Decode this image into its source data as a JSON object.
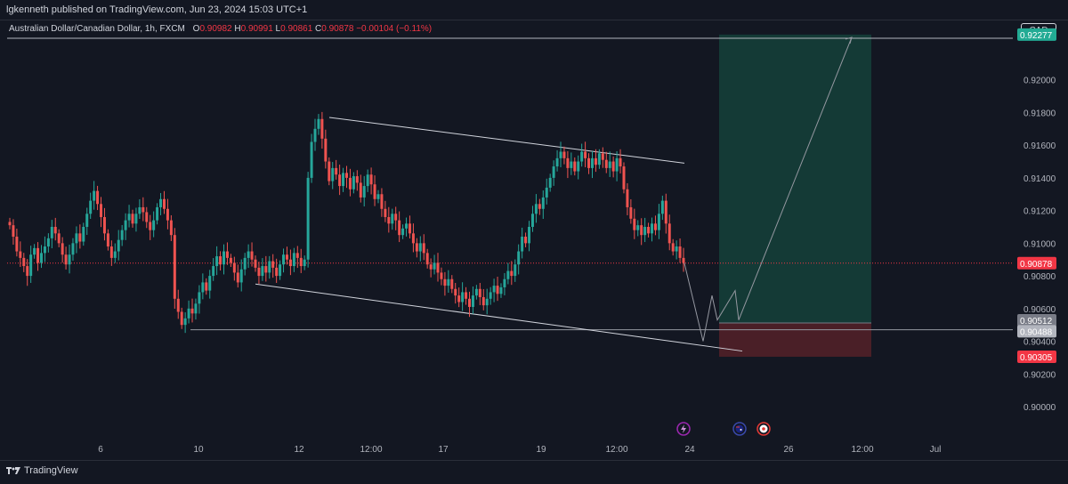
{
  "header": {
    "publish_text": "lgkenneth published on TradingView.com, Jun 23, 2024 15:03 UTC+1"
  },
  "legend": {
    "symbol": "Australian Dollar/Canadian Dollar, 1h, FXCM",
    "o_label": "O",
    "o_value": "0.90982",
    "h_label": "H",
    "h_value": "0.90991",
    "l_label": "L",
    "l_value": "0.90861",
    "c_label": "C",
    "c_value": "0.90878",
    "change": "−0.00104 (−0.11%)"
  },
  "currency_button": "CAD",
  "brand": {
    "name": "TradingView"
  },
  "colors": {
    "background": "#131722",
    "up": "#26a69a",
    "down": "#ef5350",
    "profit_zone": "#143a36",
    "loss_zone": "#4a1f27",
    "text": "#b2b5be"
  },
  "chart_data": {
    "type": "candlestick",
    "title": "Australian Dollar/Canadian Dollar, 1h, FXCM",
    "ylim": [
      0.8985,
      0.9232
    ],
    "y_ticks": [
      "0.92000",
      "0.91800",
      "0.91600",
      "0.91400",
      "0.91200",
      "0.91000",
      "0.90800",
      "0.90600",
      "0.90400",
      "0.90200",
      "0.90000"
    ],
    "x_ticks": [
      "6",
      "10",
      "12",
      "12:00",
      "17",
      "19",
      "12:00",
      "24",
      "26",
      "12:00",
      "Jul"
    ],
    "price_labels": [
      {
        "text": "0.92277",
        "value": 0.92277,
        "color": "#22ab94"
      },
      {
        "text": "0.90878",
        "value": 0.90878,
        "color": "#f23645"
      },
      {
        "text": "0.90512",
        "value": 0.90512,
        "color": "#787b86"
      },
      {
        "text": "0.90488",
        "value": 0.90488,
        "color": "#b2b5be"
      },
      {
        "text": "0.90305",
        "value": 0.90305,
        "color": "#f23645"
      }
    ],
    "current_price": 0.90878,
    "position": {
      "type": "long",
      "entry": 0.90512,
      "target": 0.92277,
      "stop": 0.90305
    },
    "channel": {
      "upper": {
        "from": 0.9177,
        "to": 0.9149
      },
      "lower": {
        "from": 0.9075,
        "to": 0.9034
      }
    },
    "support_level": 0.9047,
    "projection": [
      0.909,
      0.904,
      0.9068,
      0.9053,
      0.9071,
      0.9053,
      0.9226
    ],
    "events": [
      "lightning-event",
      "australia-flag",
      "canada-flag"
    ],
    "path": [
      0.9111,
      0.9104,
      0.9095,
      0.9091,
      0.9086,
      0.908,
      0.9093,
      0.9097,
      0.9088,
      0.9094,
      0.9098,
      0.9103,
      0.911,
      0.9106,
      0.91,
      0.9093,
      0.9087,
      0.9093,
      0.91,
      0.9106,
      0.9101,
      0.911,
      0.9118,
      0.9126,
      0.9132,
      0.9124,
      0.9116,
      0.9106,
      0.9098,
      0.9091,
      0.9095,
      0.9102,
      0.9108,
      0.9114,
      0.9118,
      0.9112,
      0.9118,
      0.9122,
      0.9119,
      0.9113,
      0.9108,
      0.9114,
      0.9122,
      0.9127,
      0.9121,
      0.9114,
      0.9105,
      0.9066,
      0.9058,
      0.905,
      0.9054,
      0.906,
      0.9057,
      0.9063,
      0.907,
      0.9076,
      0.9071,
      0.908,
      0.9086,
      0.9092,
      0.9087,
      0.9095,
      0.9091,
      0.9088,
      0.9082,
      0.9076,
      0.9084,
      0.9091,
      0.9095,
      0.909,
      0.9085,
      0.908,
      0.9086,
      0.9082,
      0.9089,
      0.9085,
      0.908,
      0.9087,
      0.9093,
      0.909,
      0.9086,
      0.9094,
      0.9091,
      0.9086,
      0.909,
      0.914,
      0.9162,
      0.917,
      0.9176,
      0.9164,
      0.915,
      0.9138,
      0.9146,
      0.9142,
      0.9135,
      0.9143,
      0.914,
      0.9133,
      0.9141,
      0.9137,
      0.9128,
      0.9135,
      0.9142,
      0.9136,
      0.9127,
      0.913,
      0.9121,
      0.9116,
      0.9112,
      0.9118,
      0.9114,
      0.9105,
      0.9109,
      0.9112,
      0.9106,
      0.91,
      0.9095,
      0.91,
      0.9094,
      0.9087,
      0.9084,
      0.9088,
      0.9082,
      0.9078,
      0.9074,
      0.9078,
      0.9072,
      0.9068,
      0.9064,
      0.907,
      0.9066,
      0.9061,
      0.9068,
      0.9072,
      0.9067,
      0.9062,
      0.9066,
      0.907,
      0.9074,
      0.9069,
      0.9073,
      0.9078,
      0.9083,
      0.908,
      0.9087,
      0.9095,
      0.9104,
      0.91,
      0.911,
      0.9118,
      0.9124,
      0.9121,
      0.9128,
      0.9134,
      0.914,
      0.9147,
      0.9152,
      0.9156,
      0.9152,
      0.9146,
      0.915,
      0.9144,
      0.915,
      0.9156,
      0.9152,
      0.9146,
      0.9152,
      0.9148,
      0.9155,
      0.9151,
      0.9146,
      0.915,
      0.9144,
      0.9152,
      0.9147,
      0.9133,
      0.9122,
      0.9115,
      0.9108,
      0.9111,
      0.9105,
      0.911,
      0.9106,
      0.9112,
      0.9108,
      0.9118,
      0.9126,
      0.9112,
      0.91,
      0.9095,
      0.9098,
      0.9091,
      0.9088
    ]
  }
}
